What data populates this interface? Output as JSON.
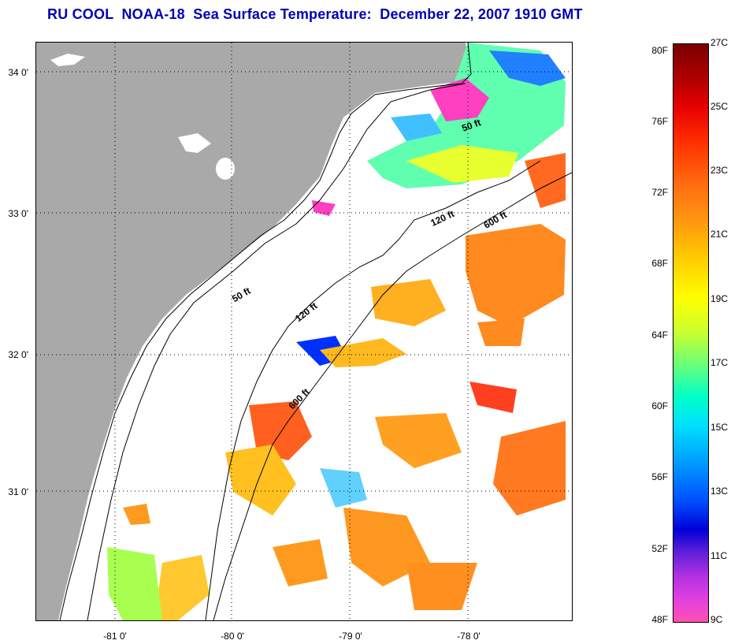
{
  "title": "RU COOL  NOAA-18  Sea Surface Temperature:  December 22, 2007 1910 GMT",
  "map": {
    "lat_labels": [
      "34 0'",
      "33 0'",
      "32 0'",
      "31 0'"
    ],
    "lon_labels": [
      "-81 0'",
      "-80 0'",
      "-79 0'",
      "-78 0'"
    ],
    "contours": [
      "50 ft",
      "120 ft",
      "600 ft",
      "50 ft",
      "120 ft",
      "600 ft"
    ],
    "colors": {
      "land": "#a9a9a9",
      "water_nodata": "#ffffff",
      "title": "#0000b4"
    }
  },
  "colorbar": {
    "f_labels": [
      "80F",
      "76F",
      "72F",
      "68F",
      "64F",
      "60F",
      "56F",
      "52F",
      "48F"
    ],
    "c_labels": [
      "27C",
      "25C",
      "23C",
      "21C",
      "19C",
      "17C",
      "15C",
      "13C",
      "11C",
      "9C"
    ]
  }
}
